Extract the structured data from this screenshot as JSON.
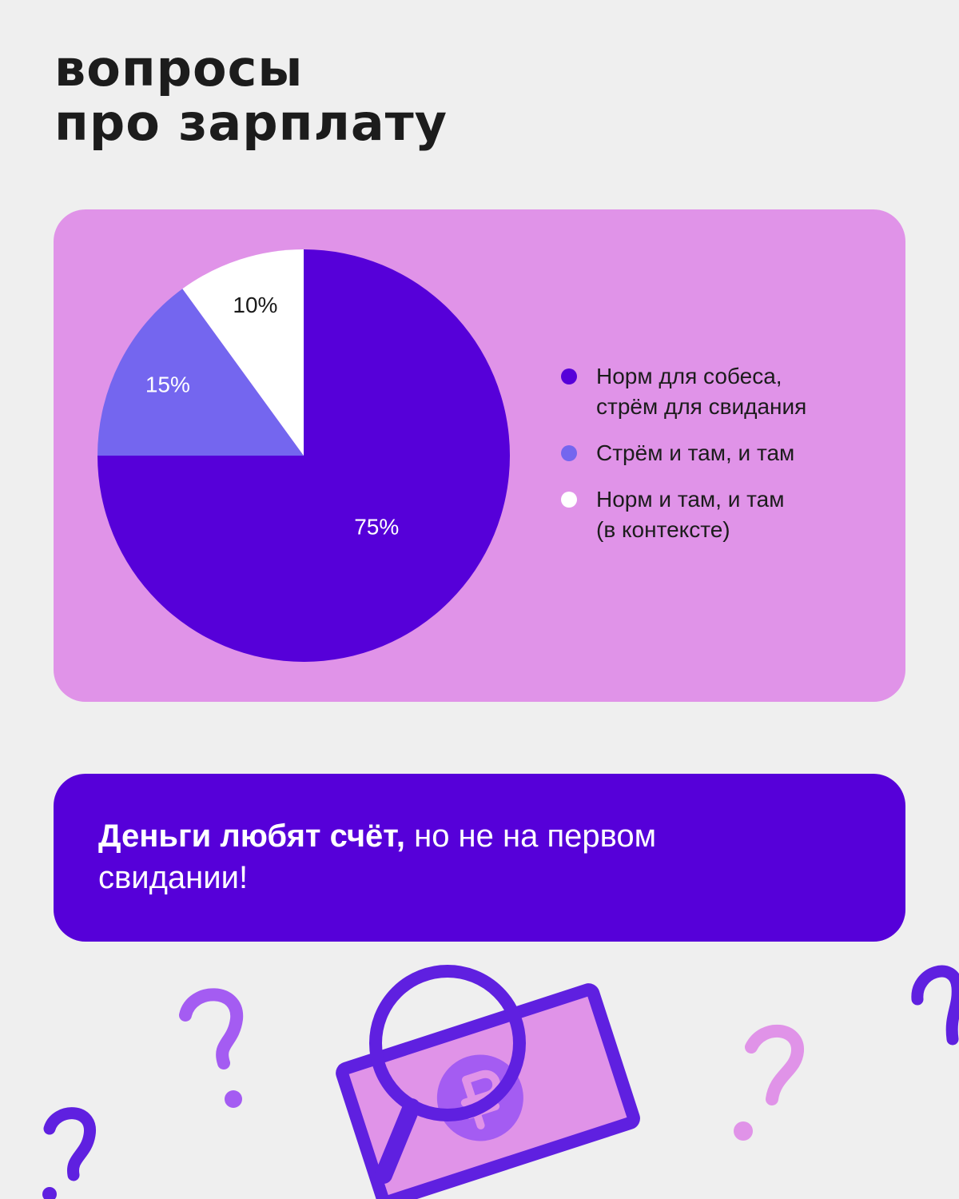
{
  "header": {
    "title": "вопросы\nпро зарплату"
  },
  "chart_data": {
    "type": "pie",
    "categories": [
      "Норм для собеса,\nстрём для свидания",
      "Стрём и там, и там",
      "Норм и там, и там\n(в контексте)"
    ],
    "values": [
      75,
      15,
      10
    ],
    "value_labels": [
      "75%",
      "15%",
      "10%"
    ],
    "colors": [
      "#5600d9",
      "#7466ef",
      "#ffffff"
    ],
    "label_colors": [
      "#ffffff",
      "#ffffff",
      "#1a1a1a"
    ],
    "legend": "right"
  },
  "banner": {
    "bold": "Деньги любят счёт,",
    "rest": "но не на первом\nсвидании!"
  }
}
